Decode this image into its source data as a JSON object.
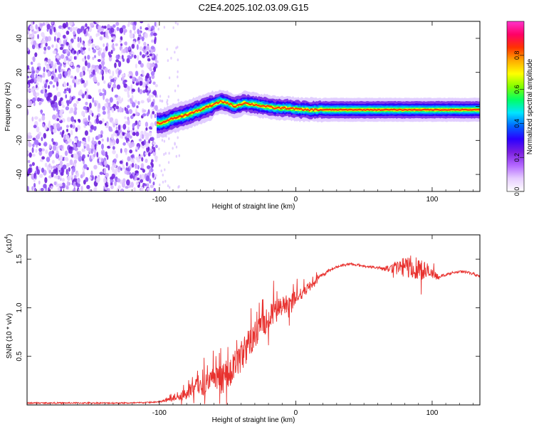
{
  "figure": {
    "title": "C2E4.2025.102.03.09.G15"
  },
  "chart_data": [
    {
      "type": "heatmap",
      "name": "spectrogram",
      "xlabel": "Height of straight line (km)",
      "ylabel": "Frequency (Hz)",
      "xlim": [
        -197,
        135
      ],
      "ylim": [
        -50,
        50
      ],
      "xticks": [
        -100,
        0,
        100
      ],
      "yticks": [
        -40,
        -20,
        0,
        20,
        40
      ],
      "colorbar": {
        "label": "Normalized spectral amplitude",
        "range": [
          0,
          1
        ],
        "ticks": [
          "0.0",
          "0.2",
          "0.4",
          "0.6",
          "0.8"
        ],
        "colors": [
          "#ffffff",
          "#e6ccff",
          "#b366ff",
          "#7a1fe0",
          "#2a00ff",
          "#0066ff",
          "#00e5ff",
          "#00ff66",
          "#7fff00",
          "#ffff00",
          "#ffaa00",
          "#ff3300",
          "#ff0066",
          "#ff33cc"
        ]
      },
      "noise_region": {
        "x_start": -197,
        "x_end": -102,
        "x_sparse_end": -85
      },
      "signal_center_hz": [
        {
          "x": -102,
          "y": -10
        },
        {
          "x": -95,
          "y": -9
        },
        {
          "x": -90,
          "y": -7
        },
        {
          "x": -80,
          "y": -5
        },
        {
          "x": -70,
          "y": -2
        },
        {
          "x": -60,
          "y": 1
        },
        {
          "x": -55,
          "y": 3
        },
        {
          "x": -50,
          "y": 2
        },
        {
          "x": -45,
          "y": 0
        },
        {
          "x": -38,
          "y": 2
        },
        {
          "x": -30,
          "y": 1
        },
        {
          "x": -22,
          "y": 0
        },
        {
          "x": -15,
          "y": -1
        },
        {
          "x": -5,
          "y": -1
        },
        {
          "x": 5,
          "y": -2
        },
        {
          "x": 20,
          "y": -2
        },
        {
          "x": 60,
          "y": -2
        },
        {
          "x": 100,
          "y": -2
        },
        {
          "x": 135,
          "y": -2
        }
      ]
    },
    {
      "type": "line",
      "name": "snr",
      "xlabel": "Height of straight line (km)",
      "ylabel": "SNR (10 * v/v)",
      "y_multiplier_label": "(x10",
      "y_multiplier_exp": "4",
      "xlim": [
        -197,
        135
      ],
      "ylim": [
        0,
        1.75
      ],
      "xticks": [
        -100,
        0,
        100
      ],
      "yticks": [
        0.5,
        1.0,
        1.5
      ],
      "color": "#e8312e",
      "series": [
        {
          "x": [
            -197,
            -120,
            -100,
            -95,
            -90,
            -85,
            -80,
            -75,
            -70,
            -65,
            -60,
            -55,
            -50,
            -45,
            -40,
            -35,
            -30,
            -25,
            -20,
            -15,
            -10,
            -5,
            0,
            5,
            10,
            15,
            20,
            25,
            30,
            35,
            40,
            45,
            50,
            55,
            60,
            65,
            70,
            75,
            80,
            85,
            90,
            95,
            100,
            105,
            110,
            115,
            120,
            125,
            130,
            135
          ],
          "y": [
            0.02,
            0.02,
            0.03,
            0.05,
            0.07,
            0.1,
            0.13,
            0.17,
            0.2,
            0.22,
            0.25,
            0.26,
            0.3,
            0.38,
            0.5,
            0.62,
            0.72,
            0.82,
            0.9,
            0.96,
            1.02,
            1.06,
            1.1,
            1.16,
            1.22,
            1.28,
            1.34,
            1.39,
            1.42,
            1.44,
            1.45,
            1.44,
            1.43,
            1.42,
            1.41,
            1.4,
            1.41,
            1.42,
            1.42,
            1.42,
            1.42,
            1.38,
            1.34,
            1.32,
            1.34,
            1.36,
            1.37,
            1.37,
            1.35,
            1.32
          ],
          "noise": [
            0,
            0,
            0.005,
            0.02,
            0.04,
            0.05,
            0.07,
            0.08,
            0.1,
            0.12,
            0.14,
            0.15,
            0.17,
            0.18,
            0.17,
            0.16,
            0.15,
            0.14,
            0.13,
            0.12,
            0.1,
            0.09,
            0.08,
            0.06,
            0.05,
            0.04,
            0.02,
            0.01,
            0.01,
            0.01,
            0.01,
            0.01,
            0.01,
            0.01,
            0.01,
            0.02,
            0.05,
            0.08,
            0.1,
            0.13,
            0.13,
            0.1,
            0.06,
            0.02,
            0.01,
            0.01,
            0.01,
            0.01,
            0.01,
            0.01
          ]
        }
      ]
    }
  ]
}
